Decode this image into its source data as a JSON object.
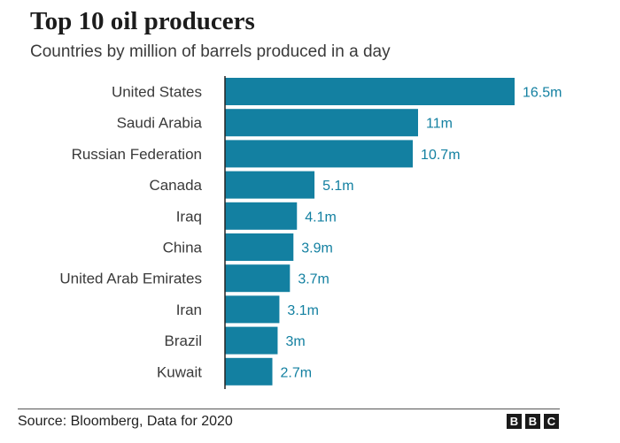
{
  "header": {
    "title": "Top 10 oil producers",
    "subtitle": "Countries by million of barrels produced in a day"
  },
  "footer": {
    "source": "Source: Bloomberg, Data for 2020",
    "logo_letters": [
      "B",
      "B",
      "C"
    ]
  },
  "chart_data": {
    "type": "bar",
    "orientation": "horizontal",
    "categories": [
      "United States",
      "Saudi Arabia",
      "Russian Federation",
      "Canada",
      "Iraq",
      "China",
      "United Arab Emirates",
      "Iran",
      "Brazil",
      "Kuwait"
    ],
    "values": [
      16.5,
      11,
      10.7,
      5.1,
      4.1,
      3.9,
      3.7,
      3.1,
      3,
      2.7
    ],
    "value_labels": [
      "16.5m",
      "11m",
      "10.7m",
      "5.1m",
      "4.1m",
      "3.9m",
      "3.7m",
      "3.1m",
      "3m",
      "2.7m"
    ],
    "bar_color": "#1380A1",
    "label_color": "#1380A1",
    "grid": false,
    "legend": "none"
  }
}
